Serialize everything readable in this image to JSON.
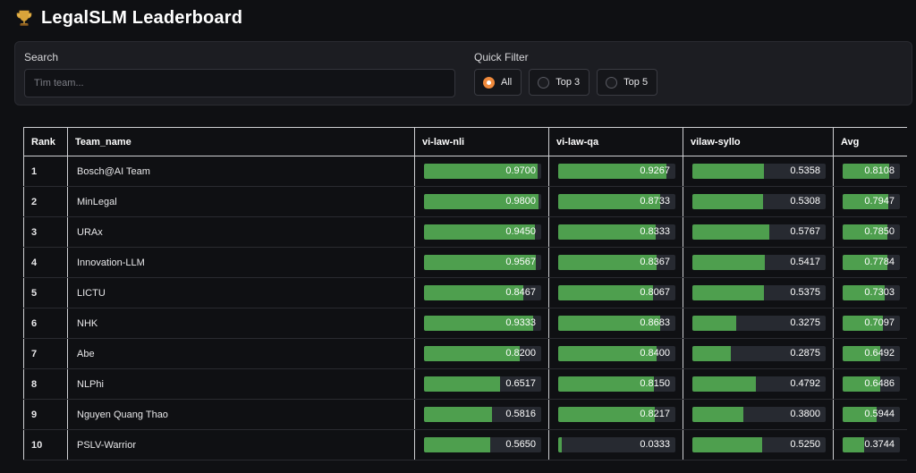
{
  "header": {
    "icon": "trophy-icon",
    "title": "LegalSLM Leaderboard"
  },
  "filters": {
    "search_label": "Search",
    "search_placeholder": "Tìm team...",
    "search_value": "",
    "quick_filter_label": "Quick Filter",
    "options": [
      {
        "label": "All",
        "selected": true
      },
      {
        "label": "Top 3",
        "selected": false
      },
      {
        "label": "Top 5",
        "selected": false
      }
    ]
  },
  "colors": {
    "accent": "#f08a3c",
    "bar_fill": "#4e9f4e",
    "bar_track": "#272a31"
  },
  "table": {
    "columns": [
      "Rank",
      "Team_name",
      "vi-law-nli",
      "vi-law-qa",
      "vilaw-syllo",
      "Avg"
    ],
    "rows": [
      {
        "rank": "1",
        "team": "Bosch@AI Team",
        "nli": "0.9700",
        "qa": "0.9267",
        "syllo": "0.5358",
        "avg": "0.8108"
      },
      {
        "rank": "2",
        "team": "MinLegal",
        "nli": "0.9800",
        "qa": "0.8733",
        "syllo": "0.5308",
        "avg": "0.7947"
      },
      {
        "rank": "3",
        "team": "URAx",
        "nli": "0.9450",
        "qa": "0.8333",
        "syllo": "0.5767",
        "avg": "0.7850"
      },
      {
        "rank": "4",
        "team": "Innovation-LLM",
        "nli": "0.9567",
        "qa": "0.8367",
        "syllo": "0.5417",
        "avg": "0.7784"
      },
      {
        "rank": "5",
        "team": "LICTU",
        "nli": "0.8467",
        "qa": "0.8067",
        "syllo": "0.5375",
        "avg": "0.7303"
      },
      {
        "rank": "6",
        "team": "NHK",
        "nli": "0.9333",
        "qa": "0.8683",
        "syllo": "0.3275",
        "avg": "0.7097"
      },
      {
        "rank": "7",
        "team": "Abe",
        "nli": "0.8200",
        "qa": "0.8400",
        "syllo": "0.2875",
        "avg": "0.6492"
      },
      {
        "rank": "8",
        "team": "NLPhi",
        "nli": "0.6517",
        "qa": "0.8150",
        "syllo": "0.4792",
        "avg": "0.6486"
      },
      {
        "rank": "9",
        "team": "Nguyen Quang Thao",
        "nli": "0.5816",
        "qa": "0.8217",
        "syllo": "0.3800",
        "avg": "0.5944"
      },
      {
        "rank": "10",
        "team": "PSLV-Warrior",
        "nli": "0.5650",
        "qa": "0.0333",
        "syllo": "0.5250",
        "avg": "0.3744"
      }
    ]
  }
}
